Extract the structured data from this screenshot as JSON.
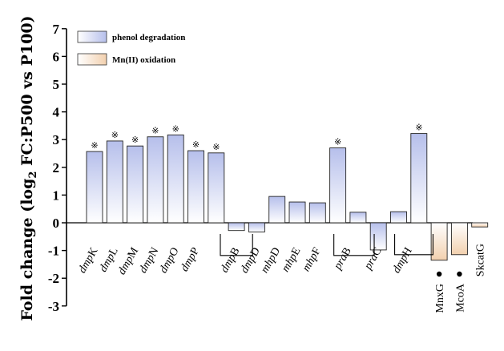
{
  "chart_data": {
    "type": "bar",
    "ylabel": "Fold change (log2 FC:P500 vs P100)",
    "ylabel_main": "Fold change (log",
    "ylabel_sub": "2",
    "ylabel_tail": " FC:P500 vs P100)",
    "ylim": [
      -3,
      7
    ],
    "yticks": [
      "-3",
      "-2",
      "-1",
      "0",
      "1",
      "2",
      "3",
      "4",
      "5",
      "6",
      "7"
    ],
    "grid": false,
    "legend_position": "top-left",
    "series": [
      {
        "name": "phenol degradation",
        "color_top": "#b8c0ec",
        "color_bottom": "#ffffff"
      },
      {
        "name": "Mn(II) oxidation",
        "color_top": "#ffffff",
        "color_bottom": "#f3d3b2"
      }
    ],
    "categories": [
      {
        "prefix": "dmp",
        "suffix": "K",
        "value": 2.57,
        "series": 0,
        "marker": "※"
      },
      {
        "prefix": "dmp",
        "suffix": "L",
        "value": 2.95,
        "series": 0,
        "marker": "※"
      },
      {
        "prefix": "dmp",
        "suffix": "M",
        "value": 2.77,
        "series": 0,
        "marker": "※"
      },
      {
        "prefix": "dmp",
        "suffix": "N",
        "value": 3.1,
        "series": 0,
        "marker": "※"
      },
      {
        "prefix": "dmp",
        "suffix": "O",
        "value": 3.17,
        "series": 0,
        "marker": "※"
      },
      {
        "prefix": "dmp",
        "suffix": "P",
        "value": 2.6,
        "series": 0,
        "marker": "※"
      },
      {
        "prefix": "dmp",
        "suffix": "B",
        "value": 2.52,
        "series": 0,
        "marker": "※"
      },
      {
        "prefix": "",
        "suffix": "",
        "value": -0.28,
        "series": 0,
        "marker": ""
      },
      {
        "prefix": "dmp",
        "suffix": "D",
        "value": -0.33,
        "series": 0,
        "marker": ""
      },
      {
        "prefix": "mhp",
        "suffix": "D",
        "value": 0.95,
        "series": 0,
        "marker": ""
      },
      {
        "prefix": "mhp",
        "suffix": "E",
        "value": 0.75,
        "series": 0,
        "marker": ""
      },
      {
        "prefix": "mhp",
        "suffix": "F",
        "value": 0.72,
        "series": 0,
        "marker": ""
      },
      {
        "prefix": "pra",
        "suffix": "B",
        "value": 2.7,
        "series": 0,
        "marker": "※"
      },
      {
        "prefix": "",
        "suffix": "",
        "value": 0.38,
        "series": 0,
        "marker": ""
      },
      {
        "prefix": "pra",
        "suffix": "C",
        "value": -0.98,
        "series": 0,
        "marker": ""
      },
      {
        "prefix": "",
        "suffix": "",
        "value": 0.4,
        "series": 0,
        "marker": ""
      },
      {
        "prefix": "dmp",
        "suffix": "H",
        "value": 3.22,
        "series": 0,
        "marker": "※"
      },
      {
        "prefix": "",
        "suffix": "",
        "value": -1.35,
        "series": 1,
        "marker": ""
      },
      {
        "prefix": "",
        "suffix": "",
        "value": -1.15,
        "series": 1,
        "marker": ""
      },
      {
        "prefix": "",
        "suffix": "",
        "value": -0.15,
        "series": 1,
        "marker": ""
      }
    ],
    "rotated_labels": [
      {
        "slot": 0,
        "prefix": "dmp",
        "suffix": "K"
      },
      {
        "slot": 1,
        "prefix": "dmp",
        "suffix": "L"
      },
      {
        "slot": 2,
        "prefix": "dmp",
        "suffix": "M"
      },
      {
        "slot": 3,
        "prefix": "dmp",
        "suffix": "N"
      },
      {
        "slot": 4,
        "prefix": "dmp",
        "suffix": "O"
      },
      {
        "slot": 5,
        "prefix": "dmp",
        "suffix": "P"
      },
      {
        "slot": 7,
        "prefix": "dmp",
        "suffix": "B"
      },
      {
        "slot": 8,
        "prefix": "dmp",
        "suffix": "D"
      },
      {
        "slot": 9,
        "prefix": "mhp",
        "suffix": "D"
      },
      {
        "slot": 10,
        "prefix": "mhp",
        "suffix": "E"
      },
      {
        "slot": 11,
        "prefix": "mhp",
        "suffix": "F"
      },
      {
        "slot": 12.5,
        "prefix": "pra",
        "suffix": "B"
      },
      {
        "slot": 14,
        "prefix": "pra",
        "suffix": "C"
      },
      {
        "slot": 15.5,
        "prefix": "dmp",
        "suffix": "H"
      }
    ],
    "vertical_labels": [
      {
        "slot": 17,
        "text": "MnxG",
        "dot": true
      },
      {
        "slot": 18,
        "text": "McoA",
        "dot": true
      },
      {
        "slot": 19,
        "text": "SkcatG",
        "dot": false
      }
    ],
    "brackets": [
      {
        "from_slot": 6.6,
        "to_slot": 7.4,
        "value": -1.18
      },
      {
        "from_slot": 12.2,
        "to_slot": 13.4,
        "value": -1.18
      },
      {
        "from_slot": 15.2,
        "to_slot": 16.3,
        "value": -1.15
      }
    ]
  }
}
